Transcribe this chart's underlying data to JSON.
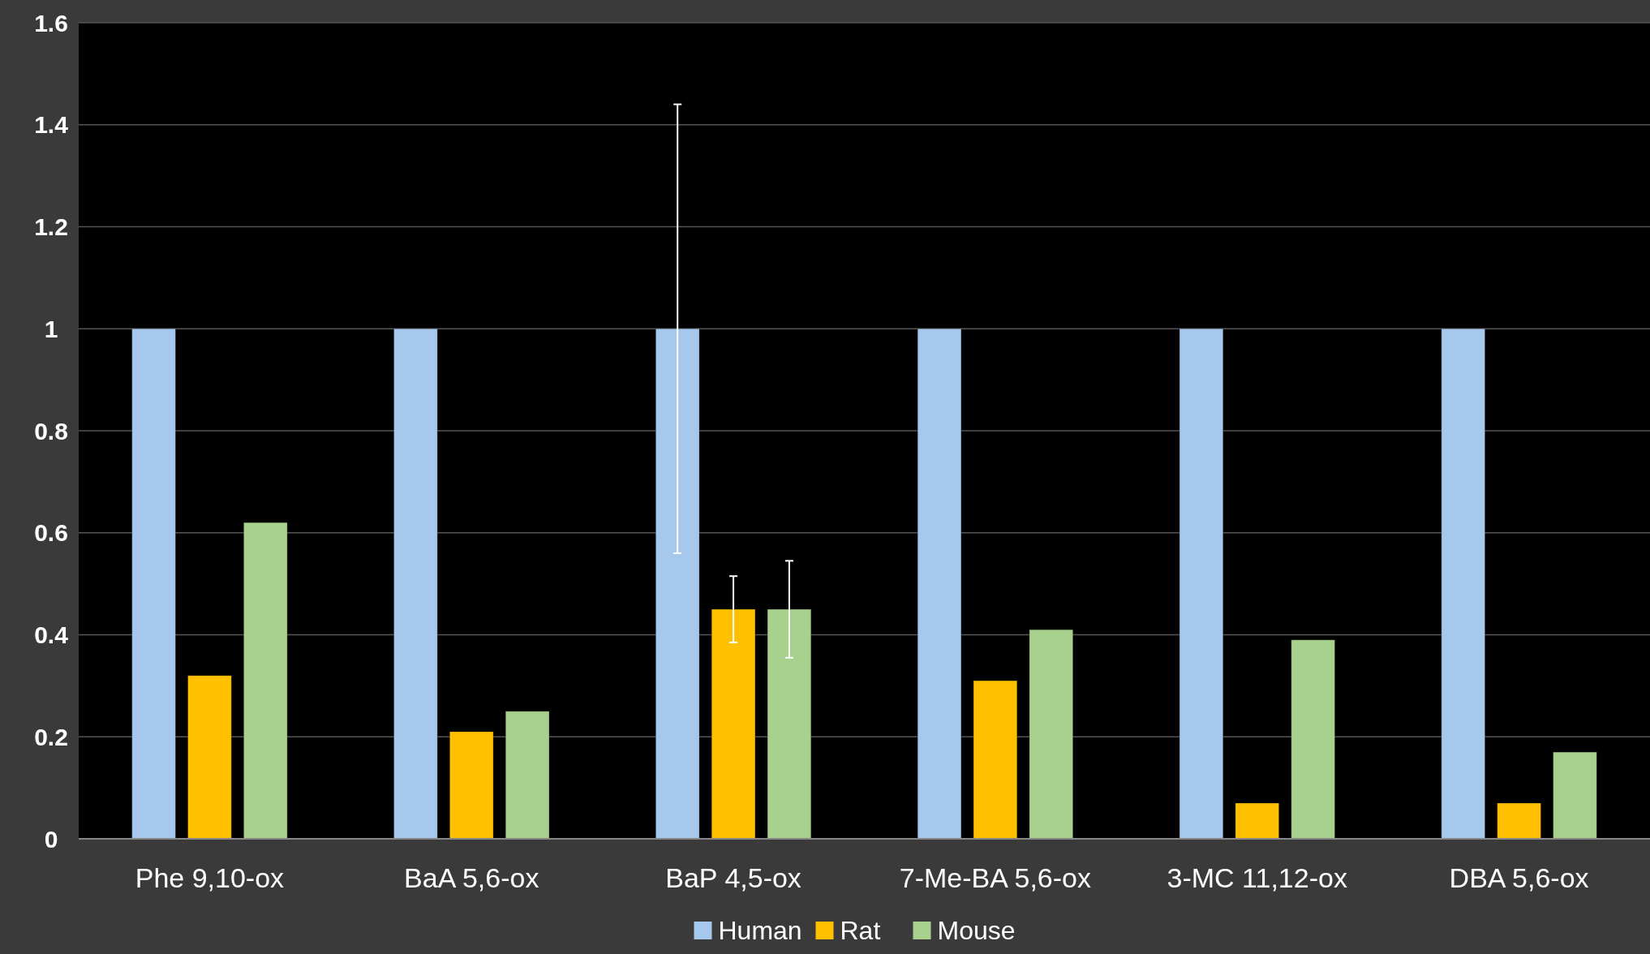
{
  "chart_data": {
    "type": "bar",
    "categories": [
      "Phe 9,10-ox",
      "BaA 5,6-ox",
      "BaP 4,5-ox",
      "7-Me-BA 5,6-ox",
      "3-MC 11,12-ox",
      "DBA 5,6-ox"
    ],
    "series": [
      {
        "name": "Human",
        "color": "#a6c8ec",
        "values": [
          1,
          1,
          1,
          1,
          1,
          1
        ],
        "errors": [
          null,
          null,
          [
            0.56,
            1.44
          ],
          null,
          null,
          null
        ]
      },
      {
        "name": "Rat",
        "color": "#ffc000",
        "values": [
          0.32,
          0.21,
          0.45,
          0.31,
          0.07,
          0.07
        ],
        "errors": [
          null,
          null,
          [
            0.385,
            0.515
          ],
          null,
          null,
          null
        ]
      },
      {
        "name": "Mouse",
        "color": "#a9d18e",
        "values": [
          0.62,
          0.25,
          0.45,
          0.41,
          0.39,
          0.17
        ],
        "errors": [
          null,
          null,
          [
            0.355,
            0.545
          ],
          null,
          null,
          null
        ]
      }
    ],
    "ylim": [
      0,
      1.6
    ],
    "yticks": [
      0,
      0.2,
      0.4,
      0.6,
      0.8,
      1,
      1.2,
      1.4,
      1.6
    ],
    "grid": "y",
    "legend": "bottom"
  }
}
